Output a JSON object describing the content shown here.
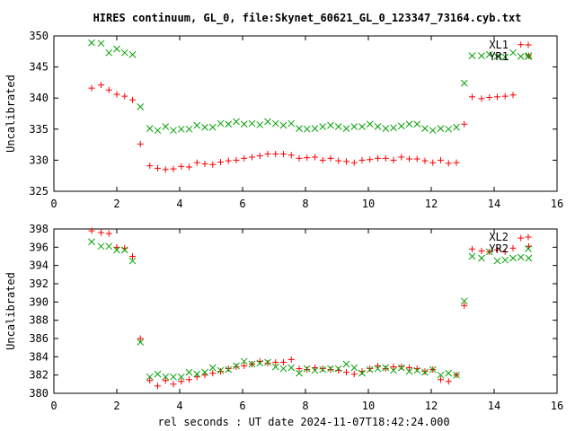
{
  "title": "HIRES continuum, GL_0, file:Skynet_60621_GL_0_123347_73164.cyb.txt",
  "xlabel": "rel seconds : UT date 2024-11-07T18:42:24.000",
  "colors": {
    "red": "#ff0000",
    "green": "#00a000",
    "axis": "#000000"
  },
  "chart_data": [
    {
      "type": "scatter",
      "ylabel": "Uncalibrated",
      "xlim": [
        0,
        16
      ],
      "ylim": [
        325,
        350
      ],
      "x_ticks": [
        0,
        2,
        4,
        6,
        8,
        10,
        12,
        14,
        16
      ],
      "y_ticks": [
        325,
        330,
        335,
        340,
        345,
        350
      ],
      "legend_position": "top-right",
      "series": [
        {
          "name": "XL1",
          "marker": "plus",
          "color": "#ff0000",
          "x": [
            1.2,
            1.5,
            1.75,
            2.0,
            2.25,
            2.5,
            2.75,
            3.05,
            3.3,
            3.55,
            3.8,
            4.05,
            4.3,
            4.55,
            4.8,
            5.05,
            5.3,
            5.55,
            5.8,
            6.05,
            6.3,
            6.55,
            6.8,
            7.05,
            7.3,
            7.55,
            7.8,
            8.05,
            8.3,
            8.55,
            8.8,
            9.05,
            9.3,
            9.55,
            9.8,
            10.05,
            10.3,
            10.55,
            10.8,
            11.05,
            11.3,
            11.55,
            11.8,
            12.05,
            12.3,
            12.55,
            12.8,
            13.05,
            13.3,
            13.6,
            13.85,
            14.1,
            14.35,
            14.6,
            14.85,
            15.1
          ],
          "y": [
            341.6,
            342.1,
            341.3,
            340.6,
            340.3,
            339.7,
            332.6,
            329.1,
            328.7,
            328.5,
            328.6,
            329.0,
            328.9,
            329.6,
            329.4,
            329.3,
            329.7,
            329.9,
            330.0,
            330.3,
            330.5,
            330.7,
            331.0,
            331.0,
            331.0,
            330.8,
            330.3,
            330.4,
            330.5,
            330.0,
            330.3,
            329.9,
            329.8,
            329.6,
            330.0,
            330.1,
            330.3,
            330.3,
            330.0,
            330.5,
            330.2,
            330.2,
            329.9,
            329.6,
            330.0,
            329.5,
            329.6,
            335.8,
            340.2,
            339.9,
            340.1,
            340.2,
            340.3,
            340.5,
            348.6,
            346.8
          ],
          "legend_extra_x": [],
          "legend_extra_y": []
        },
        {
          "name": "YR1",
          "marker": "cross",
          "color": "#00a000",
          "x": [
            1.2,
            1.5,
            1.75,
            2.0,
            2.25,
            2.5,
            2.75,
            3.05,
            3.3,
            3.55,
            3.8,
            4.05,
            4.3,
            4.55,
            4.8,
            5.05,
            5.3,
            5.55,
            5.8,
            6.05,
            6.3,
            6.55,
            6.8,
            7.05,
            7.3,
            7.55,
            7.8,
            8.05,
            8.3,
            8.55,
            8.8,
            9.05,
            9.3,
            9.55,
            9.8,
            10.05,
            10.3,
            10.55,
            10.8,
            11.05,
            11.3,
            11.55,
            11.8,
            12.05,
            12.3,
            12.55,
            12.8,
            13.05,
            13.3,
            13.6,
            13.85,
            14.1,
            14.35,
            14.6,
            14.85,
            15.1
          ],
          "y": [
            348.9,
            348.8,
            347.3,
            347.9,
            347.3,
            347.0,
            338.6,
            335.1,
            334.8,
            335.4,
            334.8,
            335.0,
            335.0,
            335.6,
            335.3,
            335.3,
            335.9,
            335.8,
            336.2,
            335.8,
            335.9,
            335.7,
            336.2,
            335.9,
            335.6,
            335.9,
            335.1,
            335.0,
            335.1,
            335.4,
            335.6,
            335.4,
            335.1,
            335.4,
            335.4,
            335.8,
            335.4,
            335.1,
            335.2,
            335.5,
            335.8,
            335.8,
            335.1,
            334.8,
            335.1,
            335.0,
            335.3,
            342.4,
            346.8,
            346.8,
            347.0,
            346.7,
            346.6,
            347.3,
            346.7,
            346.8
          ],
          "legend_extra_x": [],
          "legend_extra_y": []
        }
      ]
    },
    {
      "type": "scatter",
      "ylabel": "Uncalibrated",
      "xlim": [
        0,
        16
      ],
      "ylim": [
        380,
        398
      ],
      "x_ticks": [
        0,
        2,
        4,
        6,
        8,
        10,
        12,
        14,
        16
      ],
      "y_ticks": [
        380,
        382,
        384,
        386,
        388,
        390,
        392,
        394,
        396,
        398
      ],
      "legend_position": "top-right",
      "series": [
        {
          "name": "XL2",
          "marker": "plus",
          "color": "#ff0000",
          "x": [
            1.2,
            1.5,
            1.75,
            2.0,
            2.25,
            2.5,
            2.75,
            3.05,
            3.3,
            3.55,
            3.8,
            4.05,
            4.3,
            4.55,
            4.8,
            5.05,
            5.3,
            5.55,
            5.8,
            6.05,
            6.3,
            6.55,
            6.8,
            7.05,
            7.3,
            7.55,
            7.8,
            8.05,
            8.3,
            8.55,
            8.8,
            9.05,
            9.3,
            9.55,
            9.8,
            10.05,
            10.3,
            10.55,
            10.8,
            11.05,
            11.3,
            11.55,
            11.8,
            12.05,
            12.3,
            12.55,
            12.8,
            13.05,
            13.3,
            13.6,
            13.85,
            14.1,
            14.35,
            14.6,
            14.85,
            15.1
          ],
          "y": [
            397.8,
            397.6,
            397.5,
            396.0,
            395.9,
            395.0,
            386.0,
            381.4,
            380.8,
            381.4,
            381.0,
            381.3,
            381.5,
            381.8,
            382.0,
            382.2,
            382.4,
            382.7,
            382.9,
            383.0,
            383.2,
            383.5,
            383.3,
            383.4,
            383.4,
            383.7,
            382.7,
            382.6,
            382.8,
            382.7,
            382.6,
            382.5,
            382.3,
            382.1,
            382.4,
            382.7,
            383.0,
            382.7,
            382.9,
            382.9,
            382.8,
            382.7,
            382.4,
            382.6,
            381.5,
            381.3,
            382.0,
            389.6,
            395.8,
            395.6,
            395.5,
            395.7,
            395.5,
            395.9,
            397.0,
            396.1
          ],
          "legend_extra_x": [],
          "legend_extra_y": []
        },
        {
          "name": "YR2",
          "marker": "cross",
          "color": "#00a000",
          "x": [
            1.2,
            1.5,
            1.75,
            2.0,
            2.25,
            2.5,
            2.75,
            3.05,
            3.3,
            3.55,
            3.8,
            4.05,
            4.3,
            4.55,
            4.8,
            5.05,
            5.3,
            5.55,
            5.8,
            6.05,
            6.3,
            6.55,
            6.8,
            7.05,
            7.3,
            7.55,
            7.8,
            8.05,
            8.3,
            8.55,
            8.8,
            9.05,
            9.3,
            9.55,
            9.8,
            10.05,
            10.3,
            10.55,
            10.8,
            11.05,
            11.3,
            11.55,
            11.8,
            12.05,
            12.3,
            12.55,
            12.8,
            13.05,
            13.3,
            13.6,
            13.85,
            14.1,
            14.35,
            14.6,
            14.85,
            15.1
          ],
          "y": [
            396.6,
            396.1,
            396.1,
            395.7,
            395.7,
            394.5,
            385.6,
            381.8,
            382.1,
            381.8,
            381.8,
            381.8,
            382.3,
            382.1,
            382.3,
            382.8,
            382.5,
            382.6,
            383.0,
            383.5,
            383.2,
            383.3,
            383.4,
            382.9,
            382.7,
            382.8,
            382.2,
            382.7,
            382.5,
            382.6,
            382.7,
            382.7,
            383.2,
            382.8,
            382.2,
            382.6,
            382.7,
            382.8,
            382.5,
            382.8,
            382.4,
            382.5,
            382.3,
            382.6,
            382.0,
            382.2,
            382.0,
            390.1,
            395.0,
            394.8,
            395.5,
            394.5,
            394.6,
            394.8,
            394.9,
            394.8
          ],
          "legend_extra_x": [],
          "legend_extra_y": []
        }
      ]
    }
  ]
}
